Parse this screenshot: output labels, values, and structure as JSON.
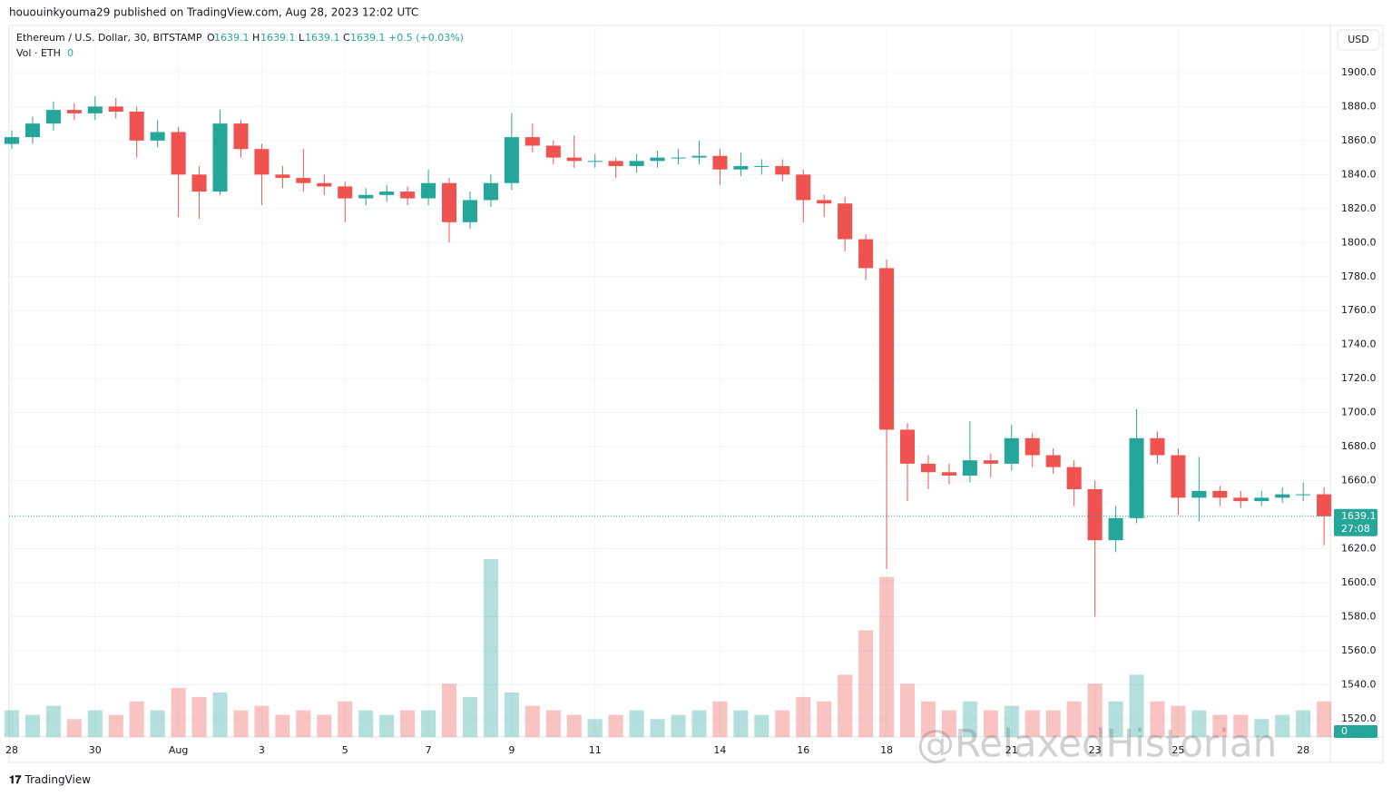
{
  "header": "hououinkyouma29 published on TradingView.com, Aug 28, 2023 12:02 UTC",
  "footer": "TradingView",
  "watermark": "@RelaxedHistorian",
  "currency_button": "USD",
  "legend": {
    "symbol": "Ethereum / U.S. Dollar, 30, BITSTAMP",
    "o_label": "O",
    "open": 1639.1,
    "h_label": "H",
    "high": 1639.1,
    "l_label": "L",
    "low": 1639.1,
    "c_label": "C",
    "close": 1639.1,
    "change": "+0.5 (+0.03%)",
    "vol_label": "Vol · ETH",
    "vol": 0
  },
  "last_price": 1639.1,
  "countdown": "27:08",
  "volume_axis_label": 0,
  "chart_data": {
    "type": "candlestick",
    "up_color": "#26a69a",
    "down_color": "#ef5350",
    "grid": true,
    "xlim": [
      -0.065,
      31.65
    ],
    "xticks": [
      {
        "value": 0,
        "label": "28"
      },
      {
        "value": 2,
        "label": "30"
      },
      {
        "value": 4,
        "label": "Aug"
      },
      {
        "value": 6,
        "label": "3"
      },
      {
        "value": 8,
        "label": "5"
      },
      {
        "value": 10,
        "label": "7"
      },
      {
        "value": 12,
        "label": "9"
      },
      {
        "value": 14,
        "label": "11"
      },
      {
        "value": 17,
        "label": "14"
      },
      {
        "value": 19,
        "label": "16"
      },
      {
        "value": 21,
        "label": "18"
      },
      {
        "value": 24,
        "label": "21"
      },
      {
        "value": 26,
        "label": "23"
      },
      {
        "value": 28,
        "label": "25"
      },
      {
        "value": 31,
        "label": "28"
      }
    ],
    "ylim": [
      1509.3,
      1927.7
    ],
    "yticks": [
      {
        "value": 1520,
        "label": "1520.0"
      },
      {
        "value": 1540,
        "label": "1540.0"
      },
      {
        "value": 1560,
        "label": "1560.0"
      },
      {
        "value": 1580,
        "label": "1580.0"
      },
      {
        "value": 1600,
        "label": "1600.0"
      },
      {
        "value": 1620,
        "label": "1620.0"
      },
      {
        "value": 1640,
        "label": "1640.0"
      },
      {
        "value": 1660,
        "label": "1660.0"
      },
      {
        "value": 1680,
        "label": "1680.0"
      },
      {
        "value": 1700,
        "label": "1700.0"
      },
      {
        "value": 1720,
        "label": "1720.0"
      },
      {
        "value": 1740,
        "label": "1740.0"
      },
      {
        "value": 1760,
        "label": "1760.0"
      },
      {
        "value": 1780,
        "label": "1780.0"
      },
      {
        "value": 1800,
        "label": "1800.0"
      },
      {
        "value": 1820,
        "label": "1820.0"
      },
      {
        "value": 1840,
        "label": "1840.0"
      },
      {
        "value": 1860,
        "label": "1860.0"
      },
      {
        "value": 1880,
        "label": "1880.0"
      },
      {
        "value": 1900,
        "label": "1900.0"
      }
    ],
    "x": [
      0,
      0.5,
      1,
      1.5,
      2,
      2.5,
      3,
      3.5,
      4,
      4.5,
      5,
      5.5,
      6,
      6.5,
      7,
      7.5,
      8,
      8.5,
      9,
      9.5,
      10,
      10.5,
      11,
      11.5,
      12,
      12.5,
      13,
      13.5,
      14,
      14.5,
      15,
      15.5,
      16,
      16.5,
      17,
      17.5,
      18,
      18.5,
      19,
      19.5,
      20,
      20.5,
      21,
      21.5,
      22,
      22.5,
      23,
      23.5,
      24,
      24.5,
      25,
      25.5,
      26,
      26.5,
      27,
      27.5,
      28,
      28.5,
      29,
      29.5,
      30,
      30.5,
      31,
      31.5
    ],
    "ohlc": [
      [
        1858,
        1866,
        1855,
        1862
      ],
      [
        1862,
        1874,
        1858,
        1870
      ],
      [
        1870,
        1883,
        1866,
        1878
      ],
      [
        1878,
        1882,
        1872,
        1876
      ],
      [
        1876,
        1886,
        1872,
        1880
      ],
      [
        1880,
        1885,
        1873,
        1877
      ],
      [
        1877,
        1880,
        1850,
        1860
      ],
      [
        1860,
        1872,
        1856,
        1865
      ],
      [
        1865,
        1868,
        1815,
        1840
      ],
      [
        1840,
        1845,
        1814,
        1830
      ],
      [
        1830,
        1878,
        1828,
        1870
      ],
      [
        1870,
        1872,
        1850,
        1855
      ],
      [
        1855,
        1858,
        1822,
        1840
      ],
      [
        1840,
        1845,
        1832,
        1838
      ],
      [
        1838,
        1855,
        1830,
        1835
      ],
      [
        1835,
        1840,
        1828,
        1833
      ],
      [
        1833,
        1836,
        1812,
        1826
      ],
      [
        1826,
        1832,
        1822,
        1828
      ],
      [
        1828,
        1834,
        1824,
        1830
      ],
      [
        1830,
        1833,
        1822,
        1826
      ],
      [
        1826,
        1843,
        1822,
        1835
      ],
      [
        1835,
        1838,
        1800,
        1812
      ],
      [
        1812,
        1830,
        1808,
        1825
      ],
      [
        1825,
        1840,
        1821,
        1835
      ],
      [
        1835,
        1876,
        1831,
        1862
      ],
      [
        1862,
        1870,
        1853,
        1857
      ],
      [
        1857,
        1860,
        1846,
        1850
      ],
      [
        1850,
        1863,
        1844,
        1848
      ],
      [
        1848,
        1852,
        1844,
        1848
      ],
      [
        1848,
        1850,
        1838,
        1845
      ],
      [
        1845,
        1852,
        1841,
        1848
      ],
      [
        1848,
        1854,
        1844,
        1850
      ],
      [
        1850,
        1855,
        1846,
        1850
      ],
      [
        1850,
        1860,
        1846,
        1851
      ],
      [
        1851,
        1855,
        1834,
        1843
      ],
      [
        1843,
        1853,
        1839,
        1845
      ],
      [
        1845,
        1849,
        1840,
        1845
      ],
      [
        1845,
        1849,
        1836,
        1840
      ],
      [
        1840,
        1843,
        1812,
        1825
      ],
      [
        1825,
        1828,
        1815,
        1823
      ],
      [
        1823,
        1827,
        1795,
        1802
      ],
      [
        1802,
        1805,
        1778,
        1785
      ],
      [
        1785,
        1790,
        1608,
        1690
      ],
      [
        1690,
        1694,
        1648,
        1670
      ],
      [
        1670,
        1675,
        1655,
        1665
      ],
      [
        1665,
        1670,
        1658,
        1663
      ],
      [
        1663,
        1695,
        1659,
        1672
      ],
      [
        1672,
        1676,
        1662,
        1670
      ],
      [
        1670,
        1693,
        1666,
        1685
      ],
      [
        1685,
        1688,
        1668,
        1675
      ],
      [
        1675,
        1679,
        1664,
        1668
      ],
      [
        1668,
        1672,
        1645,
        1655
      ],
      [
        1655,
        1660,
        1580,
        1625
      ],
      [
        1625,
        1645,
        1618,
        1638
      ],
      [
        1638,
        1702,
        1635,
        1685
      ],
      [
        1685,
        1689,
        1670,
        1675
      ],
      [
        1675,
        1679,
        1640,
        1650
      ],
      [
        1650,
        1674,
        1636,
        1654
      ],
      [
        1654,
        1657,
        1645,
        1650
      ],
      [
        1650,
        1654,
        1644,
        1648
      ],
      [
        1648,
        1654,
        1645,
        1650
      ],
      [
        1650,
        1656,
        1647,
        1652
      ],
      [
        1652,
        1659,
        1648,
        1652
      ],
      [
        1652,
        1656,
        1622,
        1639.1
      ]
    ],
    "volume": [
      30,
      25,
      35,
      20,
      30,
      25,
      40,
      30,
      55,
      45,
      50,
      30,
      35,
      25,
      30,
      25,
      40,
      30,
      25,
      30,
      30,
      60,
      45,
      200,
      50,
      35,
      30,
      25,
      20,
      25,
      30,
      20,
      25,
      30,
      40,
      30,
      25,
      30,
      45,
      40,
      70,
      120,
      180,
      60,
      40,
      30,
      40,
      30,
      35,
      30,
      30,
      40,
      60,
      40,
      70,
      40,
      35,
      30,
      25,
      25,
      20,
      25,
      30,
      40
    ],
    "volume_lim": [
      0,
      800
    ]
  }
}
